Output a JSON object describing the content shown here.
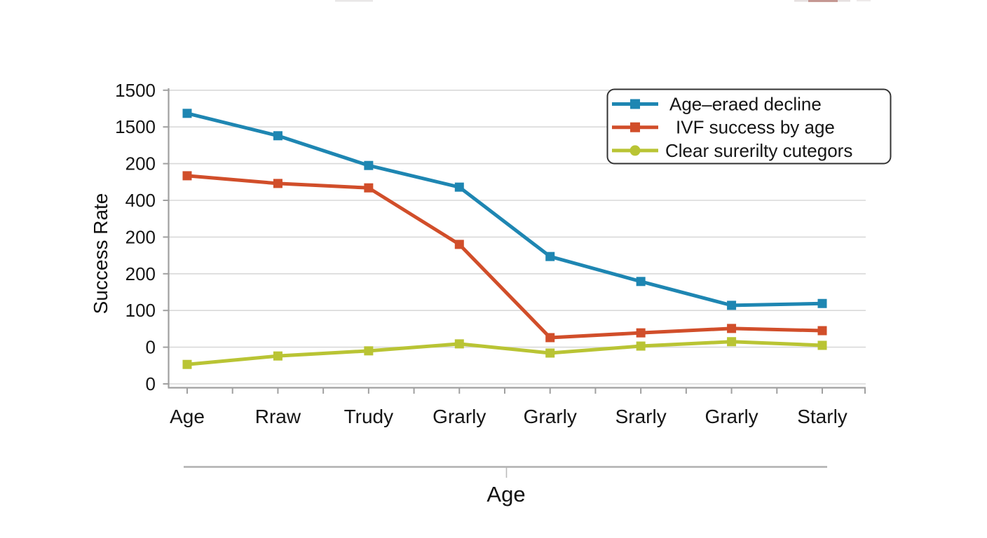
{
  "chart_data": {
    "type": "line",
    "title": "",
    "xlabel": "Age",
    "ylabel": "Success Rate",
    "categories": [
      "Age",
      "Rraw",
      "Trudy",
      "Grarly",
      "Grarly",
      "Srarly",
      "Grarly",
      "Starly"
    ],
    "y_ticks_bottom_to_top": [
      "0",
      "0",
      "100",
      "200",
      "200",
      "400",
      "200",
      "1500",
      "1500"
    ],
    "y_tick_labels_top_to_bottom": [
      "1500",
      "1500",
      "200",
      "400",
      "200",
      "200",
      "100",
      "0",
      "0"
    ],
    "value_scale": "gridline units: 0 = bottom gridline, 8 = top gridline",
    "ylim_units": [
      0,
      8
    ],
    "grid": true,
    "legend_position": "upper right",
    "series": [
      {
        "name": "Age–eraed decline",
        "color": "#1e86b2",
        "marker": "square",
        "legend_marker": "square",
        "values": [
          7.37,
          6.76,
          5.95,
          5.36,
          3.47,
          2.79,
          2.14,
          2.19
        ]
      },
      {
        "name": "IVF success by age",
        "color": "#d14e2a",
        "marker": "square",
        "legend_marker": "square",
        "values": [
          5.67,
          5.46,
          5.34,
          3.8,
          1.26,
          1.39,
          1.51,
          1.45
        ]
      },
      {
        "name": "Clear surerilty cutegors",
        "color": "#b9c434",
        "marker": "square",
        "legend_marker": "circle",
        "values": [
          0.53,
          0.76,
          0.9,
          1.09,
          0.84,
          1.03,
          1.15,
          1.05
        ]
      }
    ],
    "colors": {
      "grid": "#d9d9d9",
      "axis": "#a0a0a0",
      "outer_axis": "#b0b0b0",
      "text": "#161616",
      "legend_border": "#333333",
      "legend_fill": "#ffffff"
    }
  }
}
